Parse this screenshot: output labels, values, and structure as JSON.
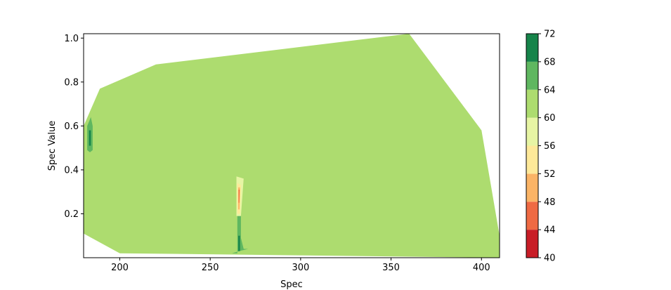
{
  "chart_data": {
    "type": "contourf",
    "xlabel": "Spec",
    "ylabel": "Spec Value",
    "xlim": [
      180,
      410
    ],
    "ylim": [
      0.0,
      1.02
    ],
    "x_ticks": [
      200,
      250,
      300,
      350,
      400
    ],
    "x_tick_labels": [
      "200",
      "250",
      "300",
      "350",
      "400"
    ],
    "y_ticks": [
      0.2,
      0.4,
      0.6,
      0.8,
      1.0
    ],
    "y_tick_labels": [
      "0.2",
      "0.4",
      "0.6",
      "0.8",
      "1.0"
    ],
    "grid": false,
    "colorbar": {
      "colormap": "RdYlGn",
      "levels": [
        40,
        44,
        48,
        52,
        56,
        60,
        64,
        68,
        72
      ],
      "tick_labels": [
        "40",
        "44",
        "48",
        "52",
        "56",
        "60",
        "64",
        "68",
        "72"
      ],
      "colors": [
        "#c81d27",
        "#ef6a43",
        "#fbb466",
        "#fee999",
        "#e7f5a4",
        "#addc6f",
        "#5fb760",
        "#16844a"
      ]
    },
    "hull": [
      [
        180,
        0.6
      ],
      [
        189,
        0.77
      ],
      [
        220,
        0.88
      ],
      [
        360,
        1.02
      ],
      [
        400,
        0.58
      ],
      [
        410,
        0.1
      ],
      [
        410,
        0.0
      ],
      [
        200,
        0.02
      ],
      [
        180,
        0.11
      ]
    ],
    "regions": [
      {
        "level_range": [
          64,
          68
        ],
        "points": [
          [
            182,
            0.49
          ],
          [
            182,
            0.6
          ],
          [
            184,
            0.64
          ],
          [
            185,
            0.6
          ],
          [
            185,
            0.49
          ],
          [
            183.5,
            0.48
          ]
        ]
      },
      {
        "level_range": [
          68,
          72
        ],
        "points": [
          [
            183,
            0.51
          ],
          [
            183,
            0.58
          ],
          [
            184,
            0.58
          ],
          [
            184,
            0.51
          ]
        ]
      },
      {
        "level_range": [
          64,
          68
        ],
        "points": [
          [
            265,
            0.02
          ],
          [
            265,
            0.19
          ],
          [
            267,
            0.19
          ],
          [
            267,
            0.09
          ],
          [
            268.5,
            0.04
          ],
          [
            271,
            0.04
          ],
          [
            266,
            0.03
          ],
          [
            262,
            0.02
          ]
        ]
      },
      {
        "level_range": [
          68,
          72
        ],
        "points": [
          [
            265.5,
            0.03
          ],
          [
            265.5,
            0.1
          ],
          [
            266.5,
            0.1
          ],
          [
            266.5,
            0.03
          ]
        ]
      },
      {
        "level_range": [
          56,
          60
        ],
        "points": [
          [
            264.5,
            0.19
          ],
          [
            264.5,
            0.37
          ],
          [
            268.5,
            0.36
          ],
          [
            267,
            0.19
          ]
        ]
      },
      {
        "level_range": [
          52,
          56
        ],
        "points": [
          [
            265,
            0.2
          ],
          [
            265,
            0.34
          ],
          [
            267,
            0.33
          ],
          [
            266.5,
            0.2
          ]
        ]
      },
      {
        "level_range": [
          48,
          52
        ],
        "points": [
          [
            265.5,
            0.22
          ],
          [
            265.5,
            0.32
          ],
          [
            266.5,
            0.32
          ],
          [
            266.2,
            0.22
          ]
        ]
      },
      {
        "level_range": [
          44,
          48
        ],
        "points": [
          [
            265.7,
            0.25
          ],
          [
            265.7,
            0.31
          ],
          [
            266.3,
            0.31
          ],
          [
            266.1,
            0.25
          ]
        ]
      }
    ]
  }
}
